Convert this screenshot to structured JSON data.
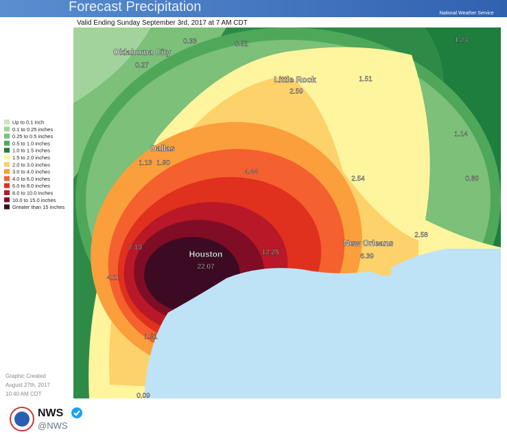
{
  "header": {
    "title": "Forecast Precipitation",
    "agency": "National Weather Service"
  },
  "map": {
    "valid": "Valid Ending Sunday September 3rd, 2017 at 7 AM CDT",
    "legend": [
      "Up to 0.1 inch",
      "0.1 to 0.25 inches",
      "0.25 to 0.5 inches",
      "0.5 to 1.0 inches",
      "1.0 to 1.5 inches",
      "1.5 to 2.0 inches",
      "2.0 to 3.0 inches",
      "3.0 to 4.0 inches",
      "4.0 to 6.0 inches",
      "6.0 to 8.0 inches",
      "8.0 to 10.0 inches",
      "10.0 to 15.0 inches",
      "Greater than 15 inches"
    ],
    "cities": [
      "Oklahoma City",
      "Little Rock",
      "Dallas",
      "Houston",
      "New Orleans"
    ],
    "amounts": [
      "0.33",
      "0.52",
      "1.23",
      "0.27",
      "2.59",
      "1.51",
      "1.13",
      "1.90",
      "4.44",
      "1.14",
      "2.54",
      "0.89",
      "7.13",
      "22.07",
      "12.25",
      "6.39",
      "2.58",
      "4.11",
      "1.91",
      "0.09"
    ]
  },
  "footer": {
    "created": [
      "Graphic Created",
      "August 27th, 2017",
      "10:40 AM CDT"
    ]
  },
  "tweet": {
    "name": "NWS",
    "handle": "@NWS"
  }
}
